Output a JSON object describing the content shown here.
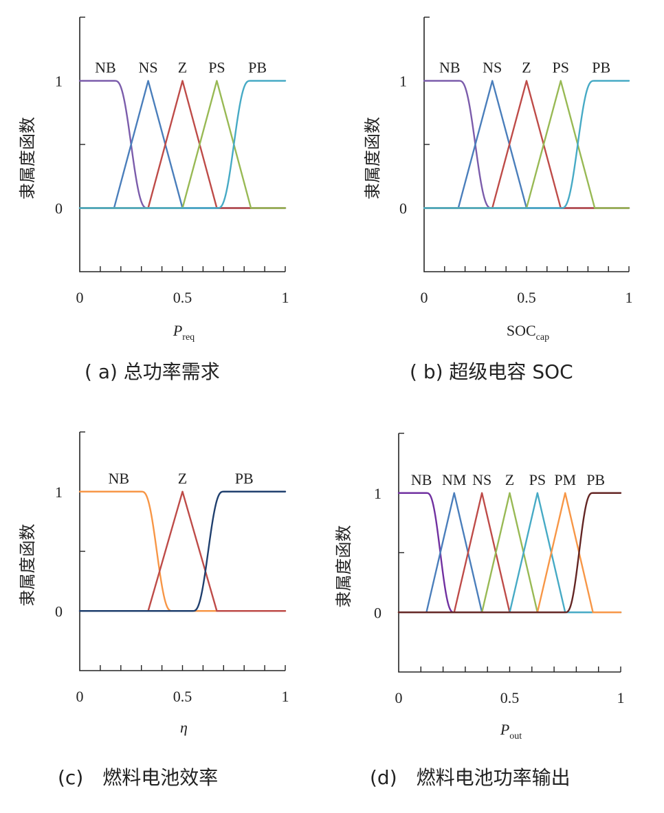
{
  "chart_data": [
    {
      "type": "line",
      "ylabel": "隶属度函数",
      "xlabel_main": "P",
      "xlabel_sub": "req",
      "xlabel_italic": true,
      "caption": "( a) 总功率需求",
      "xlim": [
        0,
        1
      ],
      "ylim": [
        -0.5,
        1.5
      ],
      "x_ticks": [
        "0",
        "0.5",
        "1"
      ],
      "y_ticks": [
        "0",
        "1"
      ],
      "series": [
        {
          "name": "NB",
          "shape": "z",
          "points": [
            [
              0,
              1
            ],
            [
              0.17,
              1
            ],
            [
              0.25,
              0.5
            ],
            [
              0.33,
              0
            ],
            [
              1,
              0
            ]
          ],
          "color": "#7b5cab"
        },
        {
          "name": "NS",
          "shape": "tri",
          "points": [
            [
              0,
              0
            ],
            [
              0.167,
              0
            ],
            [
              0.333,
              1
            ],
            [
              0.5,
              0
            ],
            [
              1,
              0
            ]
          ],
          "color": "#4a7ebb"
        },
        {
          "name": "Z",
          "shape": "tri",
          "points": [
            [
              0,
              0
            ],
            [
              0.333,
              0
            ],
            [
              0.5,
              1
            ],
            [
              0.667,
              0
            ],
            [
              1,
              0
            ]
          ],
          "color": "#be4b48"
        },
        {
          "name": "PS",
          "shape": "tri",
          "points": [
            [
              0,
              0
            ],
            [
              0.5,
              0
            ],
            [
              0.667,
              1
            ],
            [
              0.833,
              0
            ],
            [
              1,
              0
            ]
          ],
          "color": "#98b954"
        },
        {
          "name": "PB",
          "shape": "s",
          "points": [
            [
              0,
              0
            ],
            [
              0.67,
              0
            ],
            [
              0.75,
              0.5
            ],
            [
              0.83,
              1
            ],
            [
              1,
              1
            ]
          ],
          "color": "#46aac5"
        }
      ]
    },
    {
      "type": "line",
      "ylabel": "隶属度函数",
      "xlabel_main": "SOC",
      "xlabel_sub": "cap",
      "xlabel_italic": false,
      "caption": "( b) 超级电容 SOC",
      "xlim": [
        0,
        1
      ],
      "ylim": [
        -0.5,
        1.5
      ],
      "x_ticks": [
        "0",
        "0.5",
        "1"
      ],
      "y_ticks": [
        "0",
        "1"
      ],
      "series": [
        {
          "name": "NB",
          "shape": "z",
          "points": [
            [
              0,
              1
            ],
            [
              0.17,
              1
            ],
            [
              0.25,
              0.5
            ],
            [
              0.33,
              0
            ],
            [
              1,
              0
            ]
          ],
          "color": "#7b5cab"
        },
        {
          "name": "NS",
          "shape": "tri",
          "points": [
            [
              0,
              0
            ],
            [
              0.167,
              0
            ],
            [
              0.333,
              1
            ],
            [
              0.5,
              0
            ],
            [
              1,
              0
            ]
          ],
          "color": "#4a7ebb"
        },
        {
          "name": "Z",
          "shape": "tri",
          "points": [
            [
              0,
              0
            ],
            [
              0.333,
              0
            ],
            [
              0.5,
              1
            ],
            [
              0.667,
              0
            ],
            [
              1,
              0
            ]
          ],
          "color": "#be4b48"
        },
        {
          "name": "PS",
          "shape": "tri",
          "points": [
            [
              0,
              0
            ],
            [
              0.5,
              0
            ],
            [
              0.667,
              1
            ],
            [
              0.833,
              0
            ],
            [
              1,
              0
            ]
          ],
          "color": "#98b954"
        },
        {
          "name": "PB",
          "shape": "s",
          "points": [
            [
              0,
              0
            ],
            [
              0.67,
              0
            ],
            [
              0.75,
              0.5
            ],
            [
              0.83,
              1
            ],
            [
              1,
              1
            ]
          ],
          "color": "#46aac5"
        }
      ]
    },
    {
      "type": "line",
      "ylabel": "隶属度函数",
      "xlabel_main": "η",
      "xlabel_sub": "",
      "xlabel_italic": true,
      "caption": "(c)　燃料电池效率",
      "xlim": [
        0,
        1
      ],
      "ylim": [
        -0.5,
        1.5
      ],
      "x_ticks": [
        "0",
        "0.5",
        "1"
      ],
      "y_ticks": [
        "0",
        "1"
      ],
      "series": [
        {
          "name": "NB",
          "shape": "z",
          "points": [
            [
              0,
              1
            ],
            [
              0.3,
              1
            ],
            [
              0.375,
              0.5
            ],
            [
              0.45,
              0
            ],
            [
              1,
              0
            ]
          ],
          "color": "#f79646"
        },
        {
          "name": "Z",
          "shape": "tri",
          "points": [
            [
              0,
              0
            ],
            [
              0.333,
              0
            ],
            [
              0.5,
              1
            ],
            [
              0.667,
              0
            ],
            [
              1,
              0
            ]
          ],
          "color": "#be4b48"
        },
        {
          "name": "PB",
          "shape": "s",
          "points": [
            [
              0,
              0
            ],
            [
              0.55,
              0
            ],
            [
              0.625,
              0.5
            ],
            [
              0.7,
              1
            ],
            [
              1,
              1
            ]
          ],
          "color": "#1f3f6e"
        }
      ]
    },
    {
      "type": "line",
      "ylabel": "隶属度函数",
      "xlabel_main": "P",
      "xlabel_sub": "out",
      "xlabel_italic": true,
      "caption": "(d)　燃料电池功率输出",
      "xlim": [
        0,
        1
      ],
      "ylim": [
        -0.5,
        1.5
      ],
      "x_ticks": [
        "0",
        "0.5",
        "1"
      ],
      "y_ticks": [
        "0",
        "1"
      ],
      "series": [
        {
          "name": "NB",
          "shape": "z",
          "points": [
            [
              0,
              1
            ],
            [
              0.125,
              1
            ],
            [
              0.1875,
              0.5
            ],
            [
              0.25,
              0
            ],
            [
              1,
              0
            ]
          ],
          "color": "#7030a0"
        },
        {
          "name": "NM",
          "shape": "tri",
          "points": [
            [
              0,
              0
            ],
            [
              0.125,
              0
            ],
            [
              0.25,
              1
            ],
            [
              0.375,
              0
            ],
            [
              1,
              0
            ]
          ],
          "color": "#4a7ebb"
        },
        {
          "name": "NS",
          "shape": "tri",
          "points": [
            [
              0,
              0
            ],
            [
              0.25,
              0
            ],
            [
              0.375,
              1
            ],
            [
              0.5,
              0
            ],
            [
              1,
              0
            ]
          ],
          "color": "#be4b48"
        },
        {
          "name": "Z",
          "shape": "tri",
          "points": [
            [
              0,
              0
            ],
            [
              0.375,
              0
            ],
            [
              0.5,
              1
            ],
            [
              0.625,
              0
            ],
            [
              1,
              0
            ]
          ],
          "color": "#98b954"
        },
        {
          "name": "PS",
          "shape": "tri",
          "points": [
            [
              0,
              0
            ],
            [
              0.5,
              0
            ],
            [
              0.625,
              1
            ],
            [
              0.75,
              0
            ],
            [
              1,
              0
            ]
          ],
          "color": "#46aac5"
        },
        {
          "name": "PM",
          "shape": "tri",
          "points": [
            [
              0,
              0
            ],
            [
              0.625,
              0
            ],
            [
              0.75,
              1
            ],
            [
              0.875,
              0
            ],
            [
              1,
              0
            ]
          ],
          "color": "#f79646"
        },
        {
          "name": "PB",
          "shape": "s",
          "points": [
            [
              0,
              0
            ],
            [
              0.75,
              0
            ],
            [
              0.8125,
              0.5
            ],
            [
              0.875,
              1
            ],
            [
              1,
              1
            ]
          ],
          "color": "#632523"
        }
      ]
    }
  ]
}
